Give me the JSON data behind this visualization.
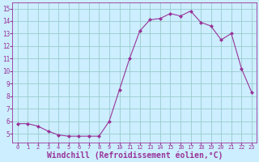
{
  "x": [
    0,
    1,
    2,
    3,
    4,
    5,
    6,
    7,
    8,
    9,
    10,
    11,
    12,
    13,
    14,
    15,
    16,
    17,
    18,
    19,
    20,
    21,
    22,
    23
  ],
  "y": [
    5.8,
    5.8,
    5.6,
    5.2,
    4.9,
    4.8,
    4.8,
    4.8,
    4.8,
    6.0,
    8.5,
    11.0,
    13.2,
    14.1,
    14.2,
    14.6,
    14.4,
    14.8,
    13.9,
    13.6,
    12.5,
    13.0,
    10.2,
    8.3
  ],
  "line_color": "#993399",
  "marker": "D",
  "marker_size": 2.0,
  "bg_color": "#cceeff",
  "grid_color": "#99cccc",
  "xlabel": "Windchill (Refroidissement éolien,°C)",
  "xlabel_fontsize": 7,
  "xlabel_color": "#993399",
  "tick_label_color": "#993399",
  "xlim": [
    -0.5,
    23.5
  ],
  "ylim": [
    4.3,
    15.5
  ],
  "yticks": [
    5,
    6,
    7,
    8,
    9,
    10,
    11,
    12,
    13,
    14,
    15
  ],
  "xticks": [
    0,
    1,
    2,
    3,
    4,
    5,
    6,
    7,
    8,
    9,
    10,
    11,
    12,
    13,
    14,
    15,
    16,
    17,
    18,
    19,
    20,
    21,
    22,
    23
  ],
  "xtick_labels": [
    "0",
    "1",
    "2",
    "3",
    "4",
    "5",
    "6",
    "7",
    "8",
    "9",
    "10",
    "11",
    "12",
    "13",
    "14",
    "15",
    "16",
    "17",
    "18",
    "19",
    "20",
    "21",
    "22",
    "23"
  ]
}
